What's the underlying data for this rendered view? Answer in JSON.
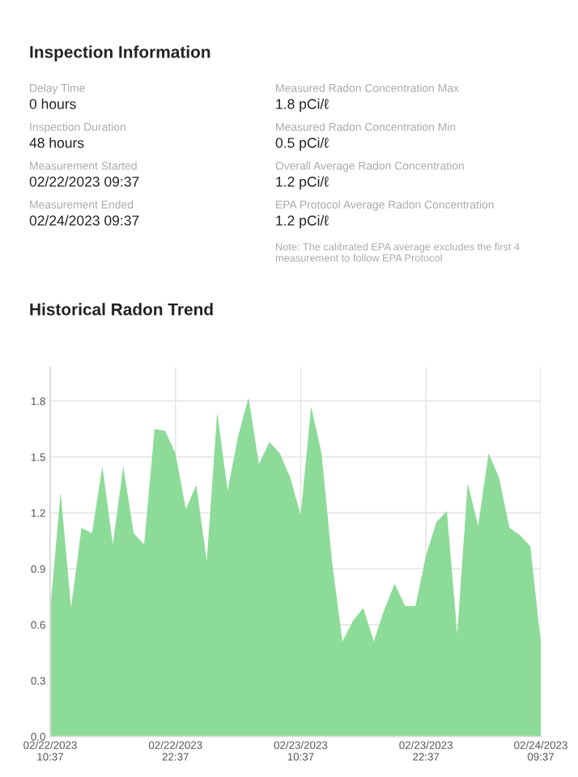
{
  "chart_data": [
    {
      "type": "other",
      "title": "Inspection Information",
      "annotations": [
        "Delay Time",
        "0 hours",
        "Inspection Duration",
        "48 hours",
        "Measurement Started",
        "02/22/2023 09:37",
        "Measurement Ended",
        "02/24/2023 09:37",
        "Measured Radon Concentration Max",
        "1.8 pCi/ℓ",
        "Measured Radon Concentration Min",
        "0.5 pCi/ℓ",
        "Overall Average Radon Concentration",
        "1.2 pCi/ℓ",
        "EPA Protocol Average Radon Concentration",
        "1.2 pCi/ℓ",
        "Note: The calibrated EPA average excludes the first 4 measurement to follow EPA Protocol"
      ]
    },
    {
      "type": "area",
      "title": "Historical Radon Trend",
      "x": [
        "2023-02-22T10:37",
        "2023-02-22T11:37",
        "2023-02-22T12:37",
        "2023-02-22T13:37",
        "2023-02-22T14:37",
        "2023-02-22T15:37",
        "2023-02-22T16:37",
        "2023-02-22T17:37",
        "2023-02-22T18:37",
        "2023-02-22T19:37",
        "2023-02-22T20:37",
        "2023-02-22T21:37",
        "2023-02-22T22:37",
        "2023-02-22T23:37",
        "2023-02-23T00:37",
        "2023-02-23T01:37",
        "2023-02-23T02:37",
        "2023-02-23T03:37",
        "2023-02-23T04:37",
        "2023-02-23T05:37",
        "2023-02-23T06:37",
        "2023-02-23T07:37",
        "2023-02-23T08:37",
        "2023-02-23T09:37",
        "2023-02-23T10:37",
        "2023-02-23T11:37",
        "2023-02-23T12:37",
        "2023-02-23T13:37",
        "2023-02-23T14:37",
        "2023-02-23T15:37",
        "2023-02-23T16:37",
        "2023-02-23T17:37",
        "2023-02-23T18:37",
        "2023-02-23T19:37",
        "2023-02-23T20:37",
        "2023-02-23T21:37",
        "2023-02-23T22:37",
        "2023-02-23T23:37",
        "2023-02-24T00:37",
        "2023-02-24T01:37",
        "2023-02-24T02:37",
        "2023-02-24T03:37",
        "2023-02-24T04:37",
        "2023-02-24T05:37",
        "2023-02-24T06:37",
        "2023-02-24T07:37",
        "2023-02-24T08:37",
        "2023-02-24T09:37"
      ],
      "series": [
        {
          "color": "#8ddb98",
          "values": [
            0.68,
            1.31,
            0.69,
            1.12,
            1.09,
            1.45,
            1.03,
            1.45,
            1.09,
            1.03,
            1.65,
            1.64,
            1.52,
            1.22,
            1.35,
            0.94,
            1.74,
            1.32,
            1.61,
            1.82,
            1.46,
            1.58,
            1.52,
            1.39,
            1.19,
            1.77,
            1.52,
            0.94,
            0.51,
            0.62,
            0.69,
            0.51,
            0.68,
            0.82,
            0.7,
            0.7,
            0.97,
            1.15,
            1.21,
            0.55,
            1.36,
            1.13,
            1.52,
            1.39,
            1.12,
            1.08,
            1.02,
            0.51
          ]
        }
      ],
      "xlim": [
        "2023-02-22T10:37",
        "2023-02-24T09:37"
      ],
      "xticks": [
        {
          "value": "2023-02-22T10:37",
          "label": "02/22/2023\n10:37"
        },
        {
          "value": "2023-02-22T22:37",
          "label": "02/22/2023\n22:37"
        },
        {
          "value": "2023-02-23T10:37",
          "label": "02/23/2023\n10:37"
        },
        {
          "value": "2023-02-23T22:37",
          "label": "02/23/2023\n22:37"
        },
        {
          "value": "2023-02-24T09:37",
          "label": "02/24/2023\n09:37"
        }
      ],
      "ylim": [
        0,
        1.98
      ],
      "yticks": [
        {
          "value": 0,
          "label": "0.0"
        },
        0.3,
        0.6,
        0.9,
        1.2,
        1.5,
        1.8
      ],
      "grid": true
    }
  ]
}
